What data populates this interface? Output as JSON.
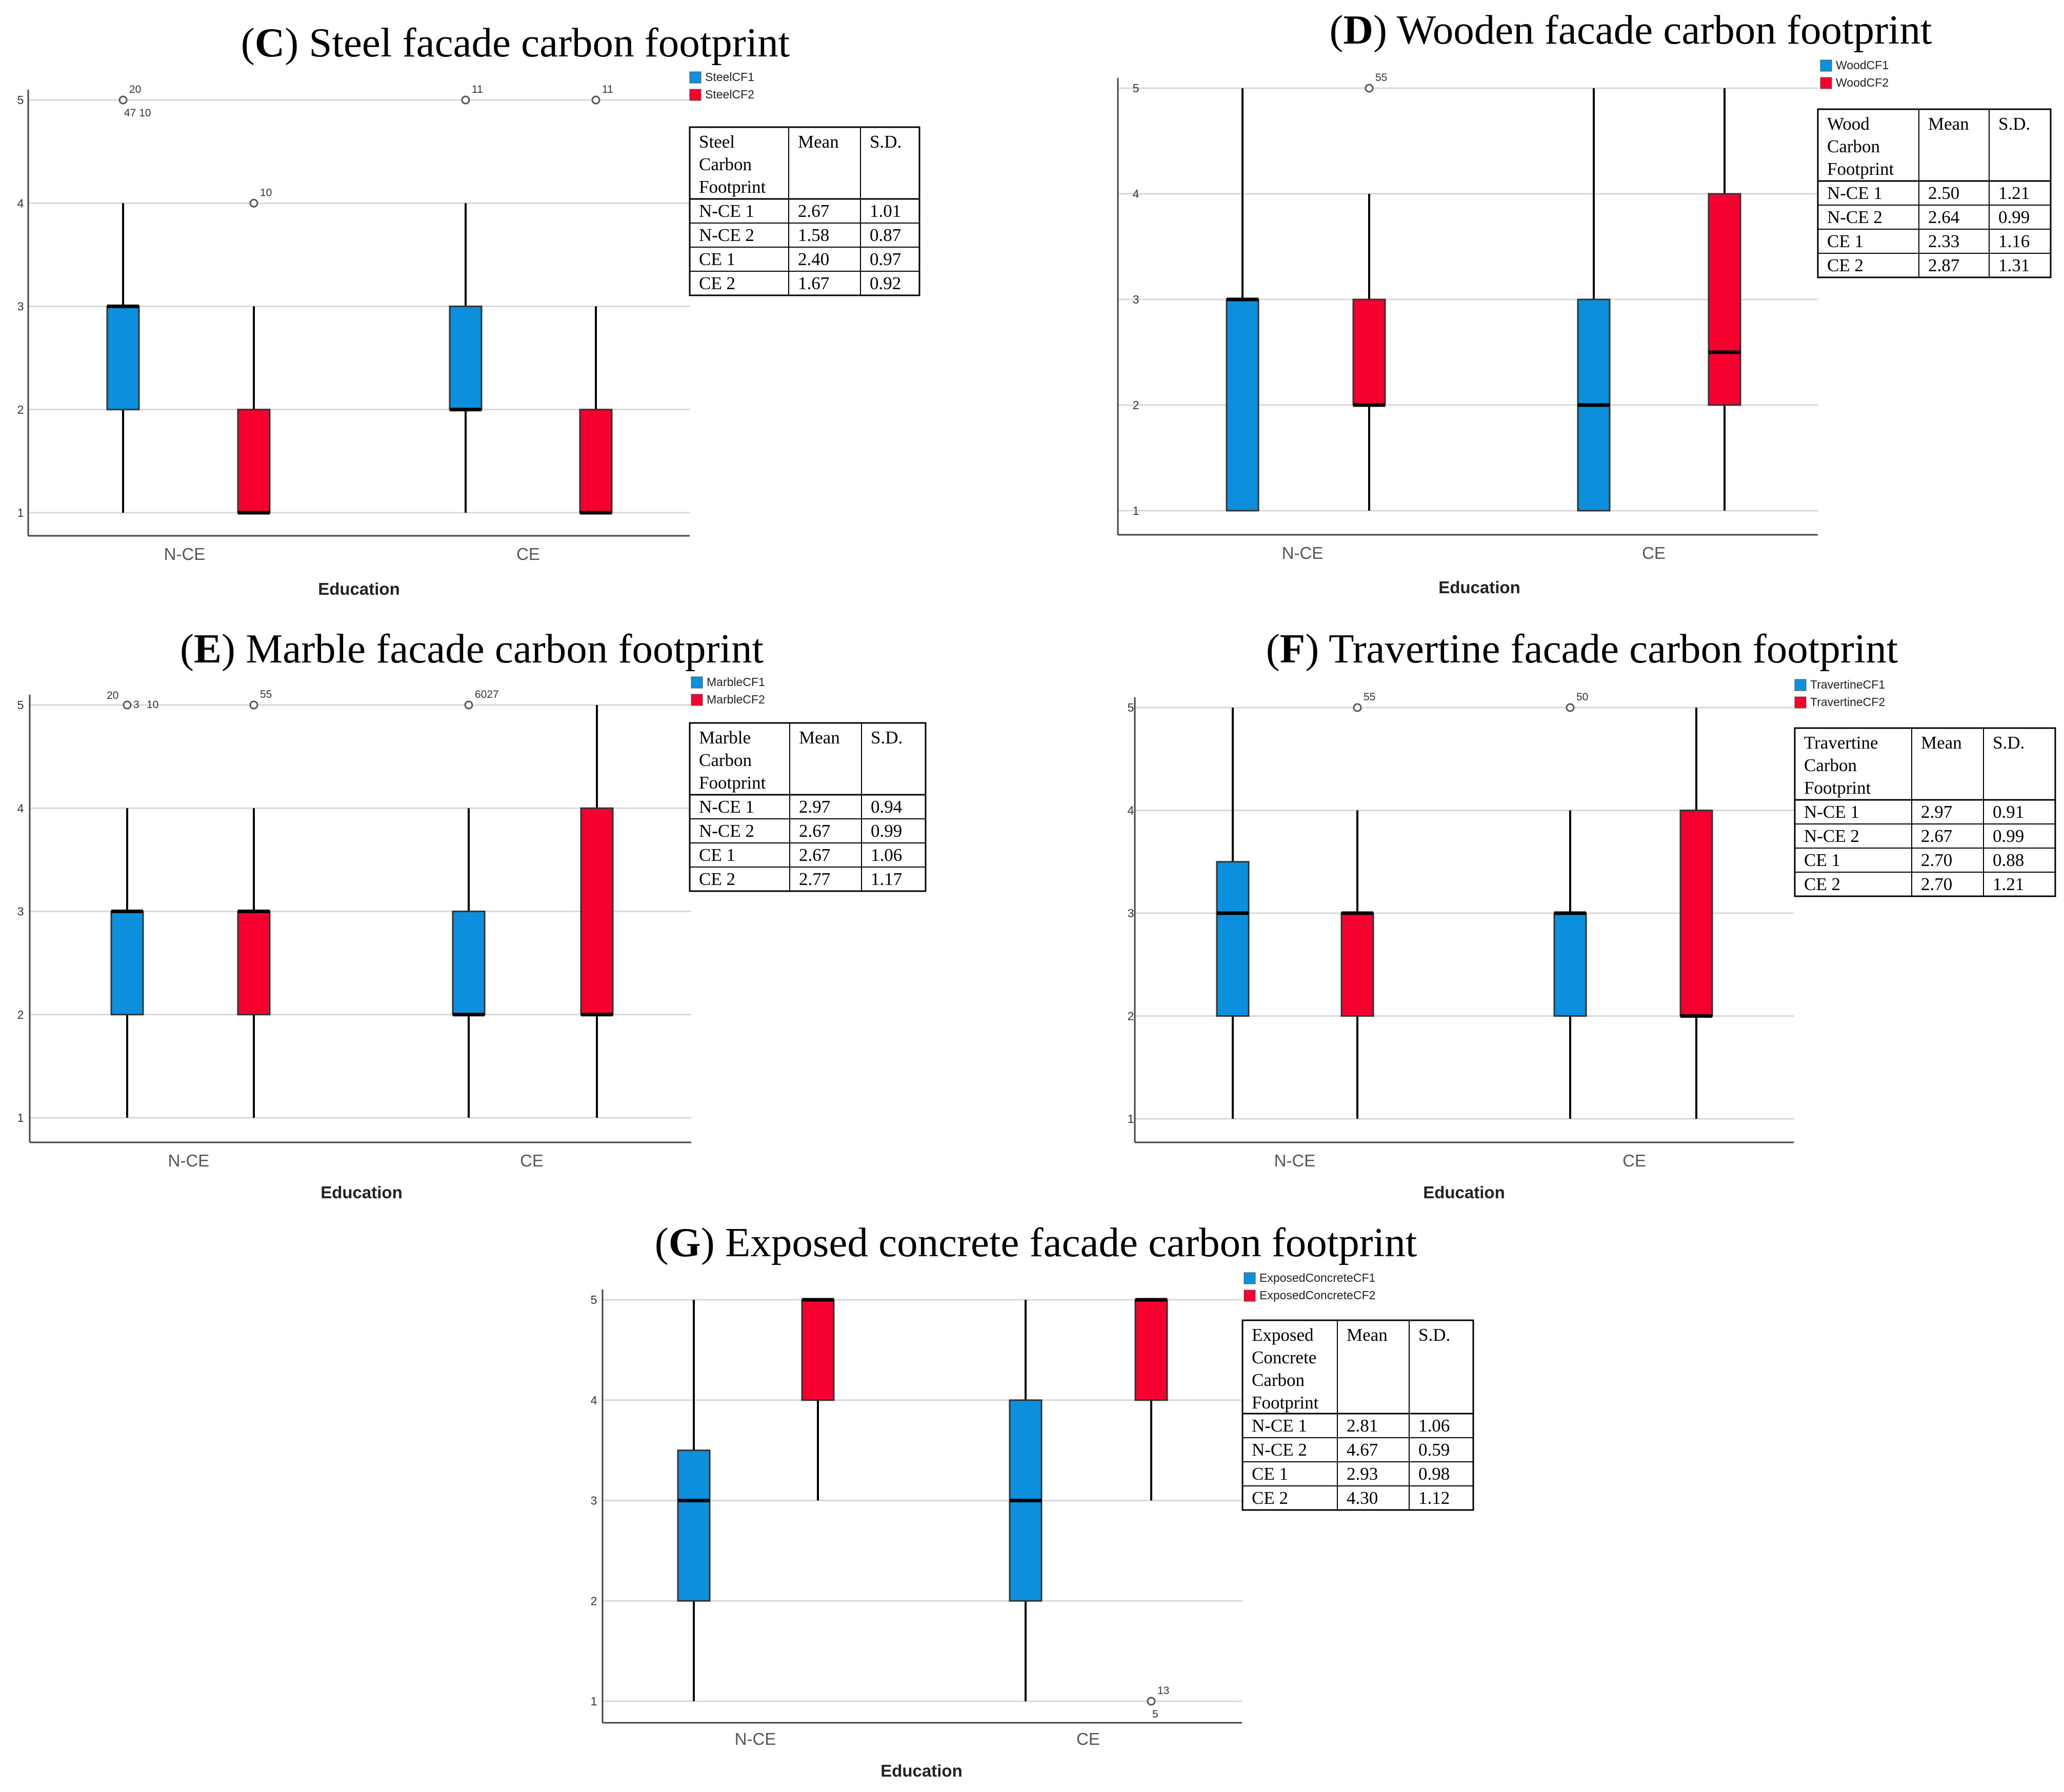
{
  "colors": {
    "series1": "#0c8fdc",
    "series2": "#f6002f",
    "grid": "#d9d9d9",
    "axis": "#444444"
  },
  "chart_data": [
    {
      "type": "boxplot",
      "title_letter": "C",
      "title_rest": "Steel facade carbon footprint",
      "xlabel": "Education",
      "categories": [
        "N-CE",
        "CE"
      ],
      "ylim": [
        1,
        5
      ],
      "yticks": [
        "1",
        "2",
        "3",
        "4",
        "5"
      ],
      "series": [
        {
          "name": "SteelCF1",
          "boxes": [
            {
              "category": "N-CE",
              "min": 1,
              "q1": 2,
              "median": 3,
              "q3": 3,
              "max": 4,
              "outliers": [
                {
                  "value": 5,
                  "labels": [
                    "20",
                    "47 10"
                  ]
                }
              ]
            },
            {
              "category": "CE",
              "min": 1,
              "q1": 2,
              "median": 2,
              "q3": 3,
              "max": 4,
              "outliers": [
                {
                  "value": 5,
                  "labels": [
                    "11"
                  ]
                }
              ]
            }
          ]
        },
        {
          "name": "SteelCF2",
          "boxes": [
            {
              "category": "N-CE",
              "min": 1,
              "q1": 1,
              "median": 1,
              "q3": 2,
              "max": 3,
              "outliers": [
                {
                  "value": 4,
                  "labels": [
                    "10"
                  ]
                }
              ]
            },
            {
              "category": "CE",
              "min": 1,
              "q1": 1,
              "median": 1,
              "q3": 2,
              "max": 3,
              "outliers": [
                {
                  "value": 5,
                  "labels": [
                    "11"
                  ]
                }
              ]
            }
          ]
        }
      ],
      "table": {
        "header": [
          "Steel\nCarbon\nFootprint",
          "Mean",
          "S.D."
        ],
        "rows": [
          [
            "N-CE 1",
            "2.67",
            "1.01"
          ],
          [
            "N-CE 2",
            "1.58",
            "0.87"
          ],
          [
            "CE 1",
            "2.40",
            "0.97"
          ],
          [
            "CE 2",
            "1.67",
            "0.92"
          ]
        ]
      }
    },
    {
      "type": "boxplot",
      "title_letter": "D",
      "title_rest": "Wooden facade carbon footprint",
      "xlabel": "Education",
      "categories": [
        "N-CE",
        "CE"
      ],
      "ylim": [
        1,
        5
      ],
      "yticks": [
        "1",
        "2",
        "3",
        "4",
        "5"
      ],
      "series": [
        {
          "name": "WoodCF1",
          "boxes": [
            {
              "category": "N-CE",
              "min": 1,
              "q1": 1,
              "median": 3,
              "q3": 3,
              "max": 5,
              "outliers": []
            },
            {
              "category": "CE",
              "min": 1,
              "q1": 1,
              "median": 2,
              "q3": 3,
              "max": 5,
              "outliers": []
            }
          ]
        },
        {
          "name": "WoodCF2",
          "boxes": [
            {
              "category": "N-CE",
              "min": 1,
              "q1": 2,
              "median": 2,
              "q3": 3,
              "max": 4,
              "outliers": [
                {
                  "value": 5,
                  "labels": [
                    "55"
                  ]
                }
              ]
            },
            {
              "category": "CE",
              "min": 1,
              "q1": 2,
              "median": 2.5,
              "q3": 4,
              "max": 5,
              "outliers": []
            }
          ]
        }
      ],
      "table": {
        "header": [
          "Wood\nCarbon\nFootprint",
          "Mean",
          "S.D."
        ],
        "rows": [
          [
            "N-CE 1",
            "2.50",
            "1.21"
          ],
          [
            "N-CE 2",
            "2.64",
            "0.99"
          ],
          [
            "CE 1",
            "2.33",
            "1.16"
          ],
          [
            "CE 2",
            "2.87",
            "1.31"
          ]
        ]
      }
    },
    {
      "type": "boxplot",
      "title_letter": "E",
      "title_rest": "Marble facade carbon footprint",
      "xlabel": "Education",
      "categories": [
        "N-CE",
        "CE"
      ],
      "ylim": [
        1,
        5
      ],
      "yticks": [
        "1",
        "2",
        "3",
        "4",
        "5"
      ],
      "series": [
        {
          "name": "MarbleCF1",
          "boxes": [
            {
              "category": "N-CE",
              "min": 1,
              "q1": 2,
              "median": 3,
              "q3": 3,
              "max": 4,
              "outliers": [
                {
                  "value": 5,
                  "labels": [
                    "20",
                    "3",
                    "10"
                  ]
                }
              ]
            },
            {
              "category": "CE",
              "min": 1,
              "q1": 2,
              "median": 2,
              "q3": 3,
              "max": 4,
              "outliers": [
                {
                  "value": 5,
                  "labels": [
                    "6027"
                  ]
                }
              ]
            }
          ]
        },
        {
          "name": "MarbleCF2",
          "boxes": [
            {
              "category": "N-CE",
              "min": 1,
              "q1": 2,
              "median": 3,
              "q3": 3,
              "max": 4,
              "outliers": [
                {
                  "value": 5,
                  "labels": [
                    "55"
                  ]
                }
              ]
            },
            {
              "category": "CE",
              "min": 1,
              "q1": 2,
              "median": 2,
              "q3": 4,
              "max": 5,
              "outliers": []
            }
          ]
        }
      ],
      "table": {
        "header": [
          "Marble\nCarbon\nFootprint",
          "Mean",
          "S.D."
        ],
        "rows": [
          [
            "N-CE 1",
            "2.97",
            "0.94"
          ],
          [
            "N-CE 2",
            "2.67",
            "0.99"
          ],
          [
            "CE 1",
            "2.67",
            "1.06"
          ],
          [
            "CE 2",
            "2.77",
            "1.17"
          ]
        ]
      }
    },
    {
      "type": "boxplot",
      "title_letter": "F",
      "title_rest": "Travertine facade carbon footprint",
      "xlabel": "Education",
      "categories": [
        "N-CE",
        "CE"
      ],
      "ylim": [
        1,
        5
      ],
      "yticks": [
        "1",
        "2",
        "3",
        "4",
        "5"
      ],
      "series": [
        {
          "name": "TravertineCF1",
          "boxes": [
            {
              "category": "N-CE",
              "min": 1,
              "q1": 2,
              "median": 3,
              "q3": 3.5,
              "max": 5,
              "outliers": []
            },
            {
              "category": "CE",
              "min": 1,
              "q1": 2,
              "median": 3,
              "q3": 3,
              "max": 4,
              "outliers": [
                {
                  "value": 5,
                  "labels": [
                    "50"
                  ]
                }
              ]
            }
          ]
        },
        {
          "name": "TravertineCF2",
          "boxes": [
            {
              "category": "N-CE",
              "min": 1,
              "q1": 2,
              "median": 3,
              "q3": 3,
              "max": 4,
              "outliers": [
                {
                  "value": 5,
                  "labels": [
                    "55"
                  ]
                }
              ]
            },
            {
              "category": "CE",
              "min": 1,
              "q1": 2,
              "median": 2,
              "q3": 4,
              "max": 5,
              "outliers": []
            }
          ]
        }
      ],
      "table": {
        "header": [
          "Travertine\nCarbon\nFootprint",
          "Mean",
          "S.D."
        ],
        "rows": [
          [
            "N-CE 1",
            "2.97",
            "0.91"
          ],
          [
            "N-CE 2",
            "2.67",
            "0.99"
          ],
          [
            "CE 1",
            "2.70",
            "0.88"
          ],
          [
            "CE 2",
            "2.70",
            "1.21"
          ]
        ]
      }
    },
    {
      "type": "boxplot",
      "title_letter": "G",
      "title_rest": "Exposed concrete facade carbon footprint",
      "xlabel": "Education",
      "categories": [
        "N-CE",
        "CE"
      ],
      "ylim": [
        1,
        5
      ],
      "yticks": [
        "1",
        "2",
        "3",
        "4",
        "5"
      ],
      "series": [
        {
          "name": "ExposedConcreteCF1",
          "boxes": [
            {
              "category": "N-CE",
              "min": 1,
              "q1": 2,
              "median": 3,
              "q3": 3.5,
              "max": 5,
              "outliers": []
            },
            {
              "category": "CE",
              "min": 1,
              "q1": 2,
              "median": 3,
              "q3": 4,
              "max": 5,
              "outliers": []
            }
          ]
        },
        {
          "name": "ExposedConcreteCF2",
          "boxes": [
            {
              "category": "N-CE",
              "min": 3,
              "q1": 4,
              "median": 5,
              "q3": 5,
              "max": 5,
              "outliers": []
            },
            {
              "category": "CE",
              "min": 3,
              "q1": 4,
              "median": 5,
              "q3": 5,
              "max": 5,
              "outliers": [
                {
                  "value": 1,
                  "labels": [
                    "13",
                    "5"
                  ]
                }
              ]
            }
          ]
        }
      ],
      "table": {
        "header": [
          "Exposed\nConcrete\nCarbon\nFootprint",
          "Mean",
          "S.D."
        ],
        "rows": [
          [
            "N-CE 1",
            "2.81",
            "1.06"
          ],
          [
            "N-CE 2",
            "4.67",
            "0.59"
          ],
          [
            "CE 1",
            "2.93",
            "0.98"
          ],
          [
            "CE 2",
            "4.30",
            "1.12"
          ]
        ]
      }
    }
  ]
}
